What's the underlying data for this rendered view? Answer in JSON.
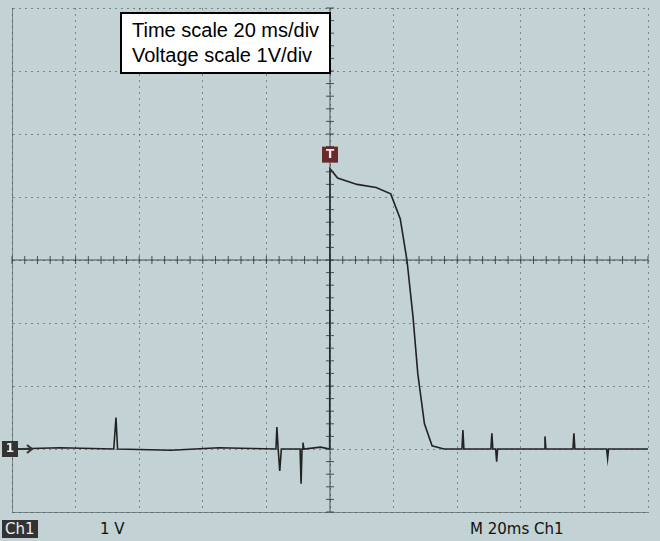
{
  "chart_data": {
    "type": "line",
    "annotations": [
      "Time scale 20 ms/div",
      "Voltage scale 1V/div"
    ],
    "status_bar": [
      "Ch1",
      "1 V",
      "M 20ms Ch1"
    ],
    "ground_marker": "1",
    "trigger_marker": "T",
    "x": [
      -100,
      -85,
      -68,
      -67.3,
      -66.8,
      -50,
      -35,
      -17,
      -16.7,
      -16.3,
      -15.8,
      -15.3,
      -9.4,
      -9.1,
      -8.8,
      -8.5,
      -8.2,
      -3,
      -0.1,
      0,
      2.4,
      8.5,
      14.5,
      19.1,
      22.1,
      24.2,
      26.1,
      27.6,
      29.7,
      32.1,
      35.8,
      41.5,
      41.8,
      42.1,
      50.6,
      50.9,
      51.2,
      52.1,
      52.4,
      52.7,
      67.3,
      67.6,
      67.9,
      76.4,
      76.7,
      77,
      87,
      87.3,
      87.6,
      100
    ],
    "values": [
      0,
      0.02,
      0,
      0.5,
      0,
      -0.02,
      0.02,
      0,
      0.35,
      0,
      -0.35,
      0,
      0,
      -0.55,
      0,
      0.1,
      0,
      0.03,
      0,
      4.45,
      4.3,
      4.2,
      4.15,
      4.05,
      3.65,
      3.0,
      2.1,
      1.2,
      0.4,
      0.05,
      0,
      0,
      0.3,
      0,
      0,
      0.25,
      0,
      0,
      -0.2,
      0,
      0,
      0.2,
      0,
      0,
      0.25,
      0,
      0,
      -0.15,
      0,
      0
    ],
    "color": "#222222",
    "xlim": [
      -100,
      100
    ],
    "xticks": [
      -100,
      -80,
      -60,
      -40,
      -20,
      0,
      20,
      40,
      60,
      80,
      100
    ],
    "ylim": [
      -1,
      7
    ],
    "yticks": [
      -1,
      0,
      1,
      2,
      3,
      4,
      5,
      6,
      7
    ],
    "grid": true,
    "tick_labels": false
  }
}
